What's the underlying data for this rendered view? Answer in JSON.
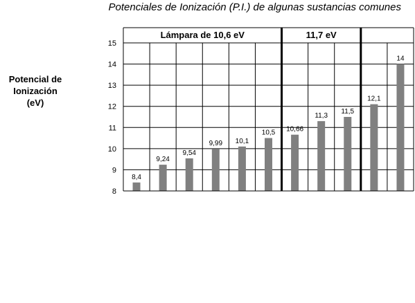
{
  "chart_data": {
    "type": "bar",
    "title": "Potenciales de Ionización (P.I.) de algunas sustancias comunes",
    "ylabel": "Potencial de\nIonización\n(eV)",
    "xlabel": "",
    "ylim": [
      8,
      15
    ],
    "yticks": [
      8,
      9,
      10,
      11,
      12,
      13,
      14,
      15
    ],
    "grid": true,
    "categories": [
      "",
      "",
      "",
      "",
      "",
      "",
      "",
      "",
      "",
      "",
      ""
    ],
    "values": [
      8.4,
      9.24,
      9.54,
      9.99,
      10.1,
      10.5,
      10.66,
      11.3,
      11.5,
      12.1,
      14
    ],
    "data_labels": [
      "8,4",
      "9,24",
      "9,54",
      "9,99",
      "10,1",
      "10,5",
      "10,66",
      "11,3",
      "11,5",
      "12,1",
      "14"
    ],
    "bar_color": "#808080",
    "groups": [
      {
        "label": "Lámpara de 10,6 eV",
        "start": 0,
        "end": 6
      },
      {
        "label": "11,7 eV",
        "start": 6,
        "end": 9
      },
      {
        "label": "",
        "start": 9,
        "end": 11
      }
    ]
  }
}
